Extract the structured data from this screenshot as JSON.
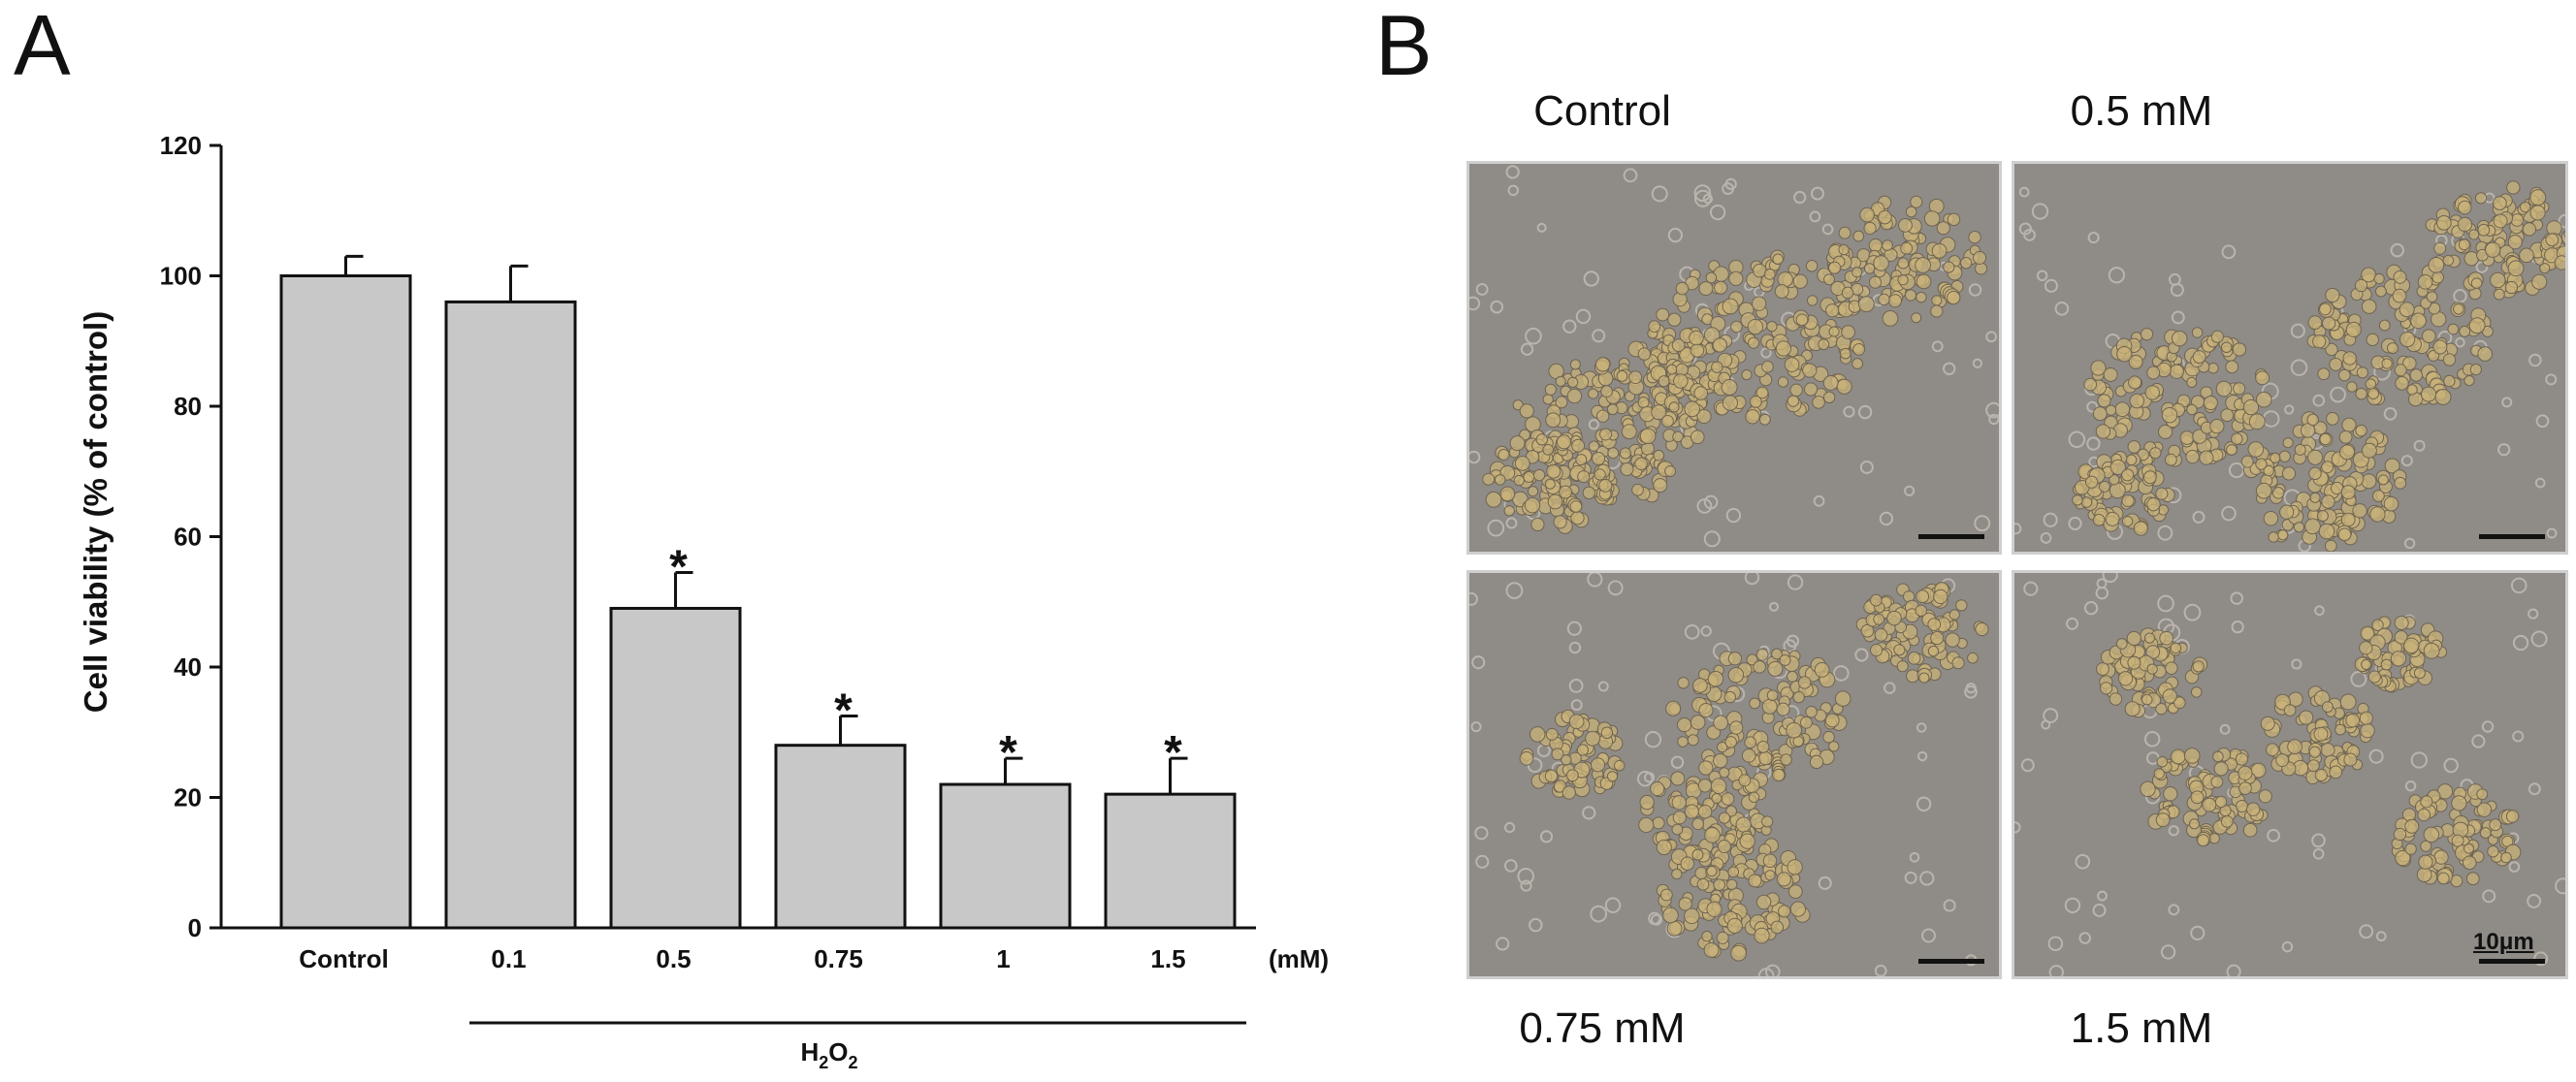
{
  "panel_a_label": "A",
  "panel_b_label": "B",
  "chart_data": {
    "type": "bar",
    "categories": [
      "Control",
      "0.1",
      "0.5",
      "0.75",
      "1",
      "1.5"
    ],
    "values": [
      100,
      96,
      49,
      28,
      22,
      20.5
    ],
    "errors": [
      3,
      5.5,
      5.5,
      4.5,
      4,
      5.5
    ],
    "significant": [
      false,
      false,
      true,
      true,
      true,
      true
    ],
    "significance_mark": "*",
    "ylabel": "Cell viability (% of control)",
    "unit_label": "(mM)",
    "group_label_main": "H",
    "group_label_sub1": "2",
    "group_label_mid": "O",
    "group_label_sub2": "2",
    "ylim": [
      0,
      120
    ],
    "yticks": [
      0,
      20,
      40,
      60,
      80,
      100,
      120
    ],
    "bar_color": "#c8c8c8",
    "grid": false
  },
  "micrographs": {
    "titles": {
      "control": "Control",
      "half": "0.5 mM",
      "threequarter": "0.75 mM",
      "onehalf": "1.5 mM"
    },
    "scale_label": "10μm",
    "background_color": "#8f8b86",
    "cell_color": "#c8b27a"
  }
}
